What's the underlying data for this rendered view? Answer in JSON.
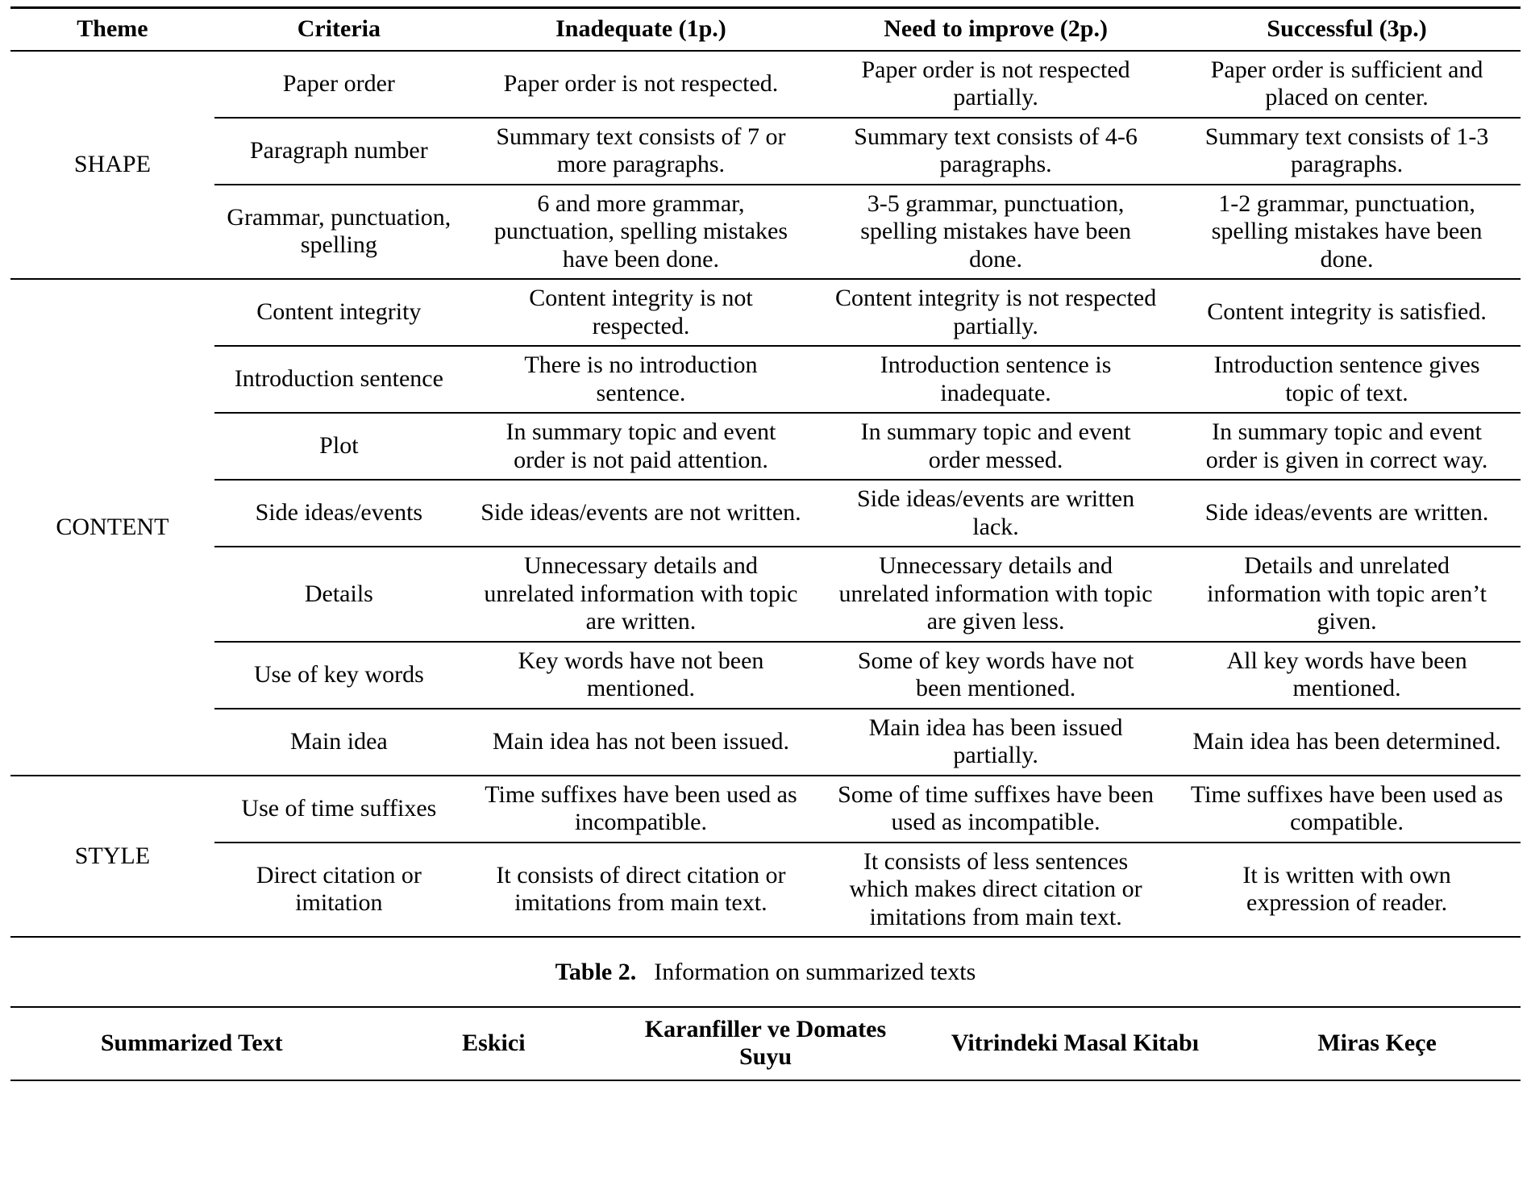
{
  "table1": {
    "headers": [
      "Theme",
      "Criteria",
      "Inadequate (1p.)",
      "Need to improve (2p.)",
      "Successful (3p.)"
    ],
    "groups": [
      {
        "theme": "SHAPE",
        "rows": [
          {
            "criteria": "Paper order",
            "inadequate": "Paper order is not respected.",
            "improve": "Paper order is not respected partially.",
            "successful": "Paper order is sufficient and placed on center."
          },
          {
            "criteria": "Paragraph number",
            "inadequate": "Summary text consists of 7 or more paragraphs.",
            "improve": "Summary text consists of 4-6 paragraphs.",
            "successful": "Summary text consists of 1-3 paragraphs."
          },
          {
            "criteria": "Grammar, punctuation, spelling",
            "inadequate": "6 and more grammar, punctuation, spelling mistakes have been done.",
            "improve": "3-5 grammar, punctuation, spelling mistakes have been done.",
            "successful": "1-2 grammar, punctuation, spelling mistakes have been done."
          }
        ]
      },
      {
        "theme": "CONTENT",
        "rows": [
          {
            "criteria": "Content integrity",
            "inadequate": "Content integrity is not respected.",
            "improve": "Content integrity is not respected partially.",
            "successful": "Content integrity is satisfied."
          },
          {
            "criteria": "Introduction sentence",
            "inadequate": "There is no introduction sentence.",
            "improve": "Introduction sentence is inadequate.",
            "successful": "Introduction sentence gives topic of text."
          },
          {
            "criteria": "Plot",
            "inadequate": "In summary topic and event order is not paid attention.",
            "improve": "In summary topic and event order messed.",
            "successful": "In summary topic and event order is given in correct way."
          },
          {
            "criteria": "Side ideas/events",
            "inadequate": "Side ideas/events are not written.",
            "improve": "Side ideas/events are written lack.",
            "successful": "Side ideas/events are written."
          },
          {
            "criteria": "Details",
            "inadequate": "Unnecessary details and unrelated information with topic are written.",
            "improve": "Unnecessary details and unrelated information with topic are given less.",
            "successful": "Details and unrelated information with topic aren’t given."
          },
          {
            "criteria": "Use of key words",
            "inadequate": "Key words have not been mentioned.",
            "improve": "Some of key words have not been mentioned.",
            "successful": "All key words have been mentioned."
          },
          {
            "criteria": "Main idea",
            "inadequate": "Main idea has not been issued.",
            "improve": "Main idea has been issued partially.",
            "successful": "Main idea has been determined."
          }
        ]
      },
      {
        "theme": "STYLE",
        "rows": [
          {
            "criteria": "Use of time suffixes",
            "inadequate": "Time suffixes have been used as incompatible.",
            "improve": "Some of time suffixes have been used as incompatible.",
            "successful": "Time suffixes have been used as compatible."
          },
          {
            "criteria": "Direct citation or imitation",
            "inadequate": "It consists of direct citation or imitations from main text.",
            "improve": "It consists of less sentences which makes direct citation or imitations from main text.",
            "successful": "It is written with own expression of reader."
          }
        ]
      }
    ]
  },
  "caption": {
    "label": "Table 2.",
    "text": "Information on summarized texts"
  },
  "table2": {
    "headers": [
      "Summarized Text",
      "Eskici",
      "Karanfiller ve Domates Suyu",
      "Vitrindeki Masal Kitabı",
      "Miras Keçe"
    ]
  }
}
